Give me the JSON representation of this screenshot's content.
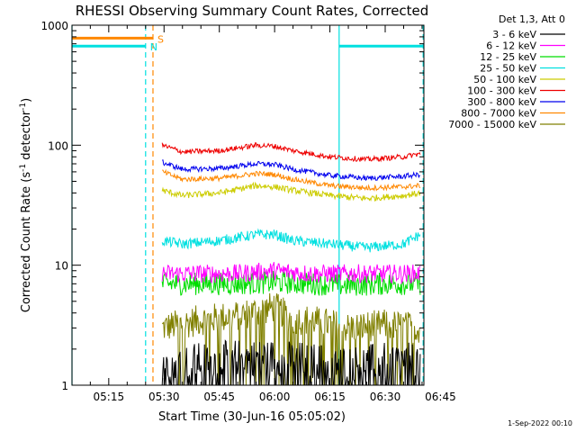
{
  "chart_data": {
    "type": "line",
    "title": "RHESSI Observing Summary Count Rates, Corrected",
    "xlabel": "Start Time (30-Jun-16 05:05:02)",
    "ylabel_main": "Corrected Count Rate (s",
    "ylabel_sup1": "-1",
    "ylabel_mid": " detector",
    "ylabel_sup2": "-1",
    "ylabel_end": ")",
    "yscale": "log",
    "ylim": [
      1,
      1000
    ],
    "xlim_minutes": [
      5.03,
      100.5
    ],
    "x_ticks": [
      {
        "label": "05:15",
        "minutes": 15
      },
      {
        "label": "05:30",
        "minutes": 30
      },
      {
        "label": "05:45",
        "minutes": 45
      },
      {
        "label": "06:00",
        "minutes": 60
      },
      {
        "label": "06:15",
        "minutes": 75
      },
      {
        "label": "06:30",
        "minutes": 90
      },
      {
        "label": "06:45",
        "minutes": 105
      }
    ],
    "y_ticks": [
      {
        "label": "1",
        "value": 1
      },
      {
        "label": "10",
        "value": 10
      },
      {
        "label": "100",
        "value": 100
      },
      {
        "label": "1000",
        "value": 1000
      }
    ],
    "legend": {
      "header": "Det 1,3, Att 0",
      "placement": "outside-right"
    },
    "data_window_minutes": [
      29.5,
      99.5
    ],
    "series": [
      {
        "name": "3 - 6 keV",
        "color": "#000000",
        "x": [
          29.5,
          40,
          50,
          60,
          70,
          80,
          90,
          99.5
        ],
        "values": [
          1.6,
          1.6,
          1.7,
          1.7,
          1.6,
          1.5,
          1.6,
          1.6
        ]
      },
      {
        "name": "6 - 12 keV",
        "color": "#ff00ff",
        "x": [
          29.5,
          40,
          50,
          60,
          70,
          80,
          90,
          99.5
        ],
        "values": [
          8.5,
          8.5,
          8.5,
          9,
          8.5,
          8.5,
          8.5,
          8.5
        ]
      },
      {
        "name": "12 - 25 keV",
        "color": "#00dd00",
        "x": [
          29.5,
          40,
          50,
          60,
          70,
          80,
          90,
          99.5
        ],
        "values": [
          7.0,
          7.0,
          7.0,
          7.2,
          7.0,
          6.8,
          7.0,
          7.0
        ]
      },
      {
        "name": "25 - 50 keV",
        "color": "#00e0e0",
        "x": [
          29.5,
          35,
          45,
          55,
          60,
          65,
          75,
          85,
          95,
          99.5
        ],
        "values": [
          16,
          15,
          16,
          18,
          18,
          16,
          15,
          14,
          15,
          18
        ]
      },
      {
        "name": "50 - 100 keV",
        "color": "#cccc00",
        "x": [
          29.5,
          35,
          45,
          55,
          60,
          65,
          75,
          85,
          95,
          99.5
        ],
        "values": [
          42,
          38,
          40,
          46,
          45,
          42,
          38,
          36,
          38,
          40
        ]
      },
      {
        "name": "100 - 300 keV",
        "color": "#ee0000",
        "x": [
          29.5,
          35,
          45,
          55,
          60,
          65,
          75,
          85,
          95,
          99.5
        ],
        "values": [
          100,
          88,
          90,
          100,
          98,
          90,
          80,
          76,
          80,
          85
        ]
      },
      {
        "name": "300 - 800 keV",
        "color": "#0000ee",
        "x": [
          29.5,
          35,
          45,
          55,
          60,
          65,
          75,
          85,
          95,
          99.5
        ],
        "values": [
          72,
          63,
          64,
          70,
          69,
          63,
          56,
          53,
          55,
          57
        ]
      },
      {
        "name": "800 - 7000 keV",
        "color": "#ff8800",
        "x": [
          29.5,
          35,
          45,
          55,
          60,
          65,
          75,
          85,
          95,
          99.5
        ],
        "values": [
          60,
          52,
          53,
          58,
          57,
          52,
          46,
          44,
          45,
          46
        ]
      },
      {
        "name": "7000 - 15000 keV",
        "color": "#808000",
        "x": [
          29.5,
          40,
          50,
          60,
          65,
          70,
          80,
          90,
          99.5
        ],
        "values": [
          3.0,
          3.5,
          3.8,
          4.5,
          3.5,
          3.5,
          3.0,
          3.2,
          3.0
        ]
      }
    ],
    "flags": [
      {
        "label": "S",
        "color": "#ff8800",
        "y": 780,
        "x_start": 5.03,
        "x_end": 27.0
      },
      {
        "label": "N",
        "color": "#00e0e0",
        "y": 670,
        "x_start": 5.03,
        "x_end": 25.0
      },
      {
        "label": "",
        "color": "#00e0e0",
        "y": 670,
        "x_start": 77.5,
        "x_end": 100.5
      }
    ],
    "vlines": [
      {
        "x": 5.03,
        "color": "#00e0e0",
        "style": "solid"
      },
      {
        "x": 25.0,
        "color": "#00e0e0",
        "style": "dashed"
      },
      {
        "x": 27.0,
        "color": "#ff8800",
        "style": "dashed"
      },
      {
        "x": 77.5,
        "color": "#00e0e0",
        "style": "solid"
      },
      {
        "x": 100.3,
        "color": "#00e0e0",
        "style": "dashed"
      }
    ]
  },
  "footer": {
    "date": "1-Sep-2022 00:10"
  }
}
